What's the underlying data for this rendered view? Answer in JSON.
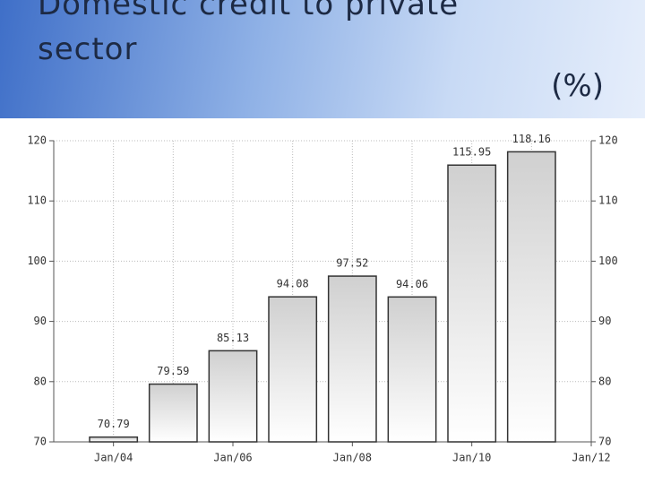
{
  "chart_data": {
    "type": "bar",
    "title": "Domestic credit to private sector",
    "unit": "(%)",
    "categories": [
      "Jan/04",
      null,
      "Jan/06",
      null,
      "Jan/08",
      null,
      "Jan/10",
      null,
      "Jan/12"
    ],
    "values": [
      70.79,
      79.59,
      85.13,
      94.08,
      97.52,
      94.06,
      115.95,
      118.16,
      null
    ],
    "color": "#d8d8d8",
    "ylim": [
      70,
      120
    ],
    "yticks": [
      70,
      80,
      90,
      100,
      110,
      120
    ],
    "grid": true
  }
}
